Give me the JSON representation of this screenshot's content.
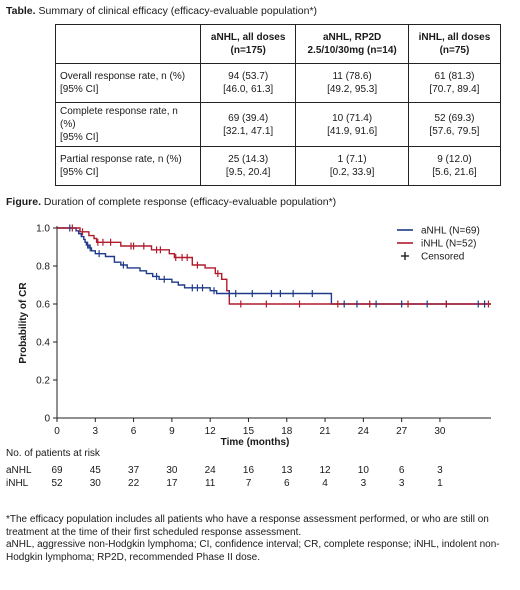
{
  "table": {
    "caption_label": "Table.",
    "caption_text": " Summary of clinical efficacy (efficacy-evaluable population*)",
    "headers": [
      {
        "line1": "aNHL, all doses",
        "line2": "(n=175)"
      },
      {
        "line1": "aNHL, RP2D",
        "line2": "2.5/10/30mg (n=14)"
      },
      {
        "line1": "iNHL, all doses",
        "line2": "(n=75)"
      }
    ],
    "rows": [
      {
        "label1": "Overall response rate, n (%)",
        "label2": "[95% CI]",
        "cells": [
          [
            "94 (53.7)",
            "[46.0, 61.3]"
          ],
          [
            "11 (78.6)",
            "[49.2, 95.3]"
          ],
          [
            "61 (81.3)",
            "[70.7, 89.4]"
          ]
        ]
      },
      {
        "label1": "Complete response rate, n (%)",
        "label2": "[95% CI]",
        "cells": [
          [
            "69 (39.4)",
            "[32.1, 47.1]"
          ],
          [
            "10 (71.4)",
            "[41.9, 91.6]"
          ],
          [
            "52 (69.3)",
            "[57.6, 79.5]"
          ]
        ]
      },
      {
        "label1": "Partial response rate, n (%)",
        "label2": "[95% CI]",
        "cells": [
          [
            "25 (14.3)",
            "[9.5, 20.4]"
          ],
          [
            "1 (7.1)",
            "[0.2, 33.9]"
          ],
          [
            "9 (12.0)",
            "[5.6, 21.6]"
          ]
        ]
      }
    ]
  },
  "figure": {
    "caption_label": "Figure.",
    "caption_text": " Duration of complete response (efficacy-evaluable population*)"
  },
  "chart_data": {
    "type": "line",
    "step": true,
    "xlabel": "Time (months)",
    "ylabel": "Probability of CR",
    "xlim": [
      0,
      34
    ],
    "ylim": [
      0,
      1.0
    ],
    "xticks": [
      0,
      3,
      6,
      9,
      12,
      15,
      18,
      21,
      24,
      27,
      30
    ],
    "yticks": [
      0,
      0.2,
      0.4,
      0.6,
      0.8,
      1.0
    ],
    "ytick_labels": [
      "0",
      "0.2",
      "0.4",
      "0.6",
      "0.8",
      "1.0"
    ],
    "legend_position": "top-right",
    "censored_label": "Censored",
    "series": [
      {
        "name": "aNHL (N=69)",
        "color": "#1f3a8a",
        "steps": [
          [
            0,
            1.0
          ],
          [
            1.5,
            0.985
          ],
          [
            1.7,
            0.97
          ],
          [
            1.9,
            0.955
          ],
          [
            2.1,
            0.94
          ],
          [
            2.2,
            0.925
          ],
          [
            2.3,
            0.91
          ],
          [
            2.5,
            0.895
          ],
          [
            2.7,
            0.88
          ],
          [
            3.0,
            0.865
          ],
          [
            3.8,
            0.85
          ],
          [
            4.5,
            0.82
          ],
          [
            5.0,
            0.805
          ],
          [
            5.5,
            0.79
          ],
          [
            6.5,
            0.775
          ],
          [
            7.0,
            0.76
          ],
          [
            7.5,
            0.745
          ],
          [
            8.0,
            0.73
          ],
          [
            9.0,
            0.715
          ],
          [
            9.5,
            0.7
          ],
          [
            10.0,
            0.685
          ],
          [
            12.0,
            0.67
          ],
          [
            12.5,
            0.655
          ],
          [
            21.5,
            0.6
          ],
          [
            34,
            0.6
          ]
        ],
        "censored": [
          [
            1.0,
            1.0
          ],
          [
            2.4,
            0.91
          ],
          [
            2.6,
            0.895
          ],
          [
            3.3,
            0.865
          ],
          [
            5.2,
            0.805
          ],
          [
            7.8,
            0.745
          ],
          [
            8.4,
            0.73
          ],
          [
            10.6,
            0.685
          ],
          [
            11.0,
            0.685
          ],
          [
            11.4,
            0.685
          ],
          [
            12.3,
            0.67
          ],
          [
            13.5,
            0.655
          ],
          [
            14.0,
            0.655
          ],
          [
            15.3,
            0.655
          ],
          [
            16.8,
            0.655
          ],
          [
            17.5,
            0.655
          ],
          [
            18.5,
            0.655
          ],
          [
            20.0,
            0.655
          ],
          [
            22.5,
            0.6
          ],
          [
            23.5,
            0.6
          ],
          [
            25.0,
            0.6
          ],
          [
            27.0,
            0.6
          ],
          [
            29.0,
            0.6
          ],
          [
            30.5,
            0.6
          ],
          [
            33.0,
            0.6
          ],
          [
            33.5,
            0.6
          ]
        ]
      },
      {
        "name": "iNHL (N=52)",
        "color": "#b01c2e",
        "steps": [
          [
            0,
            1.0
          ],
          [
            1.8,
            0.98
          ],
          [
            2.5,
            0.96
          ],
          [
            2.9,
            0.945
          ],
          [
            3.1,
            0.925
          ],
          [
            5.0,
            0.905
          ],
          [
            7.4,
            0.885
          ],
          [
            8.8,
            0.865
          ],
          [
            9.2,
            0.845
          ],
          [
            10.6,
            0.805
          ],
          [
            11.6,
            0.79
          ],
          [
            12.4,
            0.76
          ],
          [
            12.9,
            0.73
          ],
          [
            13.3,
            0.67
          ],
          [
            13.5,
            0.6
          ],
          [
            34,
            0.6
          ]
        ],
        "censored": [
          [
            1.2,
            1.0
          ],
          [
            2.0,
            0.98
          ],
          [
            3.2,
            0.925
          ],
          [
            3.6,
            0.925
          ],
          [
            4.2,
            0.925
          ],
          [
            5.8,
            0.905
          ],
          [
            6.0,
            0.905
          ],
          [
            6.8,
            0.905
          ],
          [
            7.8,
            0.885
          ],
          [
            8.1,
            0.885
          ],
          [
            9.3,
            0.845
          ],
          [
            9.8,
            0.845
          ],
          [
            10.2,
            0.845
          ],
          [
            11.0,
            0.805
          ],
          [
            12.6,
            0.76
          ],
          [
            14.4,
            0.6
          ],
          [
            16.4,
            0.6
          ],
          [
            19.0,
            0.6
          ],
          [
            22.0,
            0.6
          ],
          [
            24.5,
            0.6
          ],
          [
            27.5,
            0.6
          ],
          [
            30.5,
            0.6
          ],
          [
            33.8,
            0.6
          ]
        ]
      }
    ],
    "at_risk": {
      "title": "No. of patients at risk",
      "times": [
        0,
        3,
        6,
        9,
        12,
        15,
        18,
        21,
        24,
        27,
        30
      ],
      "rows": [
        {
          "label": "aNHL",
          "counts": [
            69,
            45,
            37,
            30,
            24,
            16,
            13,
            12,
            10,
            6,
            3
          ]
        },
        {
          "label": "iNHL",
          "counts": [
            52,
            30,
            22,
            17,
            11,
            7,
            6,
            4,
            3,
            3,
            1
          ]
        }
      ]
    }
  },
  "footnotes": {
    "line1": "*The efficacy population includes all patients who have a response assessment performed, or who are still on treatment at the time of their first scheduled response assessment.",
    "line2": "aNHL, aggressive non-Hodgkin lymphoma; CI, confidence interval; CR, complete response; iNHL, indolent non-Hodgkin lymphoma; RP2D, recommended Phase II dose."
  }
}
